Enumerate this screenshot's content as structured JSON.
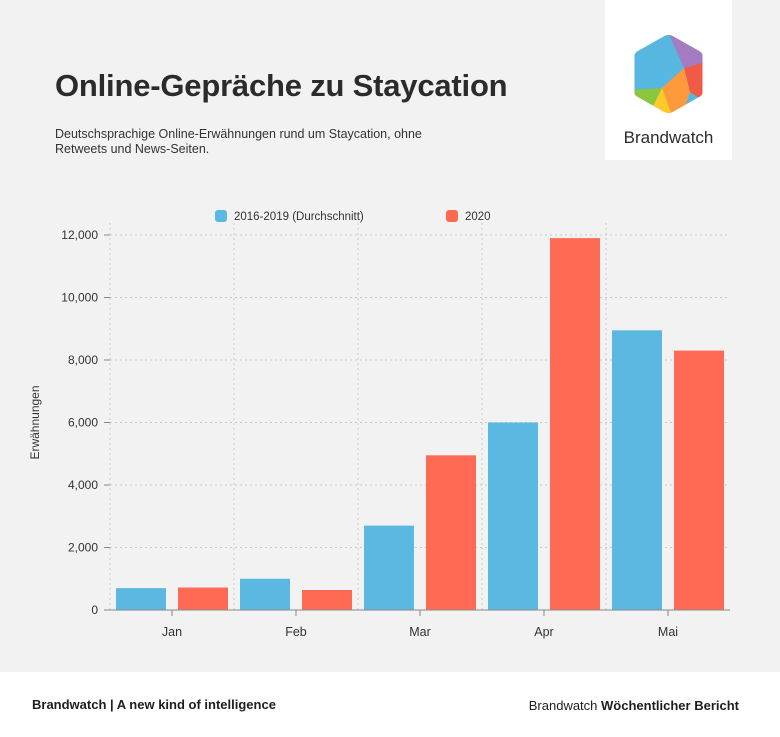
{
  "header": {
    "title": "Online-Gepräche zu Staycation",
    "subtitle": "Deutschsprachige Online-Erwähnungen rund um Staycation, ohne Retweets und News-Seiten."
  },
  "logo": {
    "name": "Brandwatch",
    "icon": "hexagon-logo-icon",
    "colors": [
      "#57b7e0",
      "#ff6d55",
      "#a57bc2",
      "#ff9a3c",
      "#ffc928",
      "#8cc63f",
      "#f15a47"
    ]
  },
  "chart_data": {
    "type": "bar",
    "categories": [
      "Jan",
      "Feb",
      "Mar",
      "Apr",
      "Mai"
    ],
    "series": [
      {
        "name": "2016-2019 (Durchschnitt)",
        "color": "#5bb8e0",
        "values": [
          700,
          1000,
          2700,
          6000,
          8950
        ]
      },
      {
        "name": "2020",
        "color": "#ff6a55",
        "values": [
          720,
          640,
          4950,
          11900,
          8300
        ]
      }
    ],
    "ylabel": "Erwähnungen",
    "xlabel": "",
    "ylim": [
      0,
      12000
    ],
    "yticks": [
      0,
      2000,
      4000,
      6000,
      8000,
      10000,
      12000
    ],
    "ytick_labels": [
      "0",
      "2,000",
      "4,000",
      "6,000",
      "8,000",
      "10,000",
      "12,000"
    ],
    "grid": true,
    "legend_position": "top"
  },
  "footer": {
    "left_text": "Brandwatch | A new kind of intelligence",
    "right_prefix": "Brandwatch",
    "right_bold": "Wöchentlicher Bericht"
  }
}
